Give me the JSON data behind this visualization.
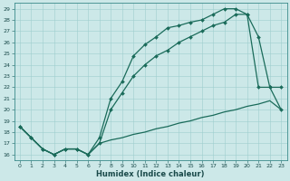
{
  "xlabel": "Humidex (Indice chaleur)",
  "bg_color": "#cce8e8",
  "line_color": "#1a6b5a",
  "xlim": [
    -0.5,
    23.5
  ],
  "ylim": [
    15.5,
    29.5
  ],
  "yticks": [
    16,
    17,
    18,
    19,
    20,
    21,
    22,
    23,
    24,
    25,
    26,
    27,
    28,
    29
  ],
  "xticks": [
    0,
    1,
    2,
    3,
    4,
    5,
    6,
    7,
    8,
    9,
    10,
    11,
    12,
    13,
    14,
    15,
    16,
    17,
    18,
    19,
    20,
    21,
    22,
    23
  ],
  "line1_x": [
    0,
    1,
    2,
    3,
    4,
    5,
    6,
    7,
    8,
    9,
    10,
    11,
    12,
    13,
    14,
    15,
    16,
    17,
    18,
    19,
    20,
    21,
    22,
    23
  ],
  "line1_y": [
    18.5,
    17.5,
    16.5,
    16.0,
    16.5,
    16.5,
    16.0,
    17.0,
    17.3,
    17.5,
    17.8,
    18.0,
    18.3,
    18.5,
    18.8,
    19.0,
    19.3,
    19.5,
    19.8,
    20.0,
    20.3,
    20.5,
    20.8,
    20.0
  ],
  "line2_x": [
    0,
    1,
    2,
    3,
    4,
    5,
    6,
    7,
    8,
    9,
    10,
    11,
    12,
    13,
    14,
    15,
    16,
    17,
    18,
    19,
    20,
    21,
    22,
    23
  ],
  "line2_y": [
    18.5,
    17.5,
    16.5,
    16.0,
    16.5,
    16.5,
    16.0,
    17.0,
    20.0,
    21.5,
    23.0,
    24.0,
    24.8,
    25.3,
    26.0,
    26.5,
    27.0,
    27.5,
    27.8,
    28.5,
    28.5,
    26.5,
    22.0,
    22.0
  ],
  "line3_x": [
    0,
    1,
    2,
    3,
    4,
    5,
    6,
    7,
    8,
    9,
    10,
    11,
    12,
    13,
    14,
    15,
    16,
    17,
    18,
    19,
    20,
    21,
    22,
    23
  ],
  "line3_y": [
    18.5,
    17.5,
    16.5,
    16.0,
    16.5,
    16.5,
    16.0,
    17.5,
    21.0,
    22.5,
    24.8,
    25.8,
    26.5,
    27.3,
    27.5,
    27.8,
    28.0,
    28.5,
    29.0,
    29.0,
    28.5,
    22.0,
    22.0,
    20.0
  ]
}
